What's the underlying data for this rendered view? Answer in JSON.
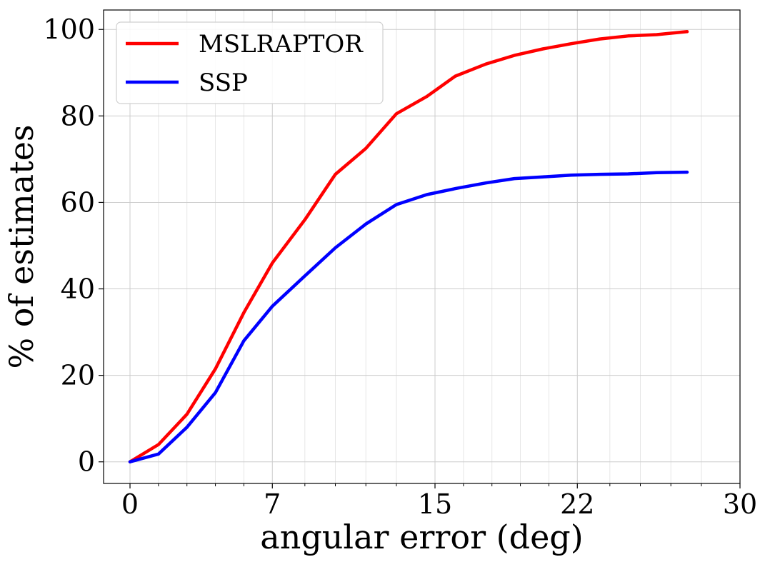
{
  "chart_data": {
    "type": "line",
    "xlabel": "angular error (deg)",
    "ylabel": "% of estimates",
    "xlim": [
      -1.3,
      30
    ],
    "ylim": [
      -5,
      104.5
    ],
    "xticks": [
      0,
      7,
      15,
      22,
      30
    ],
    "xtick_labels": [
      "0",
      "7",
      "15",
      "22",
      "30"
    ],
    "xminor": [
      1.4,
      2.8,
      4.2,
      5.6,
      8.6,
      10.1,
      11.6,
      13.1,
      16.4,
      17.8,
      19.2,
      20.6,
      23.6,
      25.1,
      26.6,
      28.1
    ],
    "yticks": [
      0,
      20,
      40,
      60,
      80,
      100
    ],
    "ytick_labels": [
      "0",
      "20",
      "40",
      "60",
      "80",
      "100"
    ],
    "grid": true,
    "legend_position": "top-left",
    "series": [
      {
        "name": "MSLRAPTOR",
        "color": "#ff0000",
        "x": [
          0,
          1.4,
          2.8,
          4.2,
          5.6,
          7.0,
          8.6,
          10.1,
          11.6,
          13.1,
          14.6,
          16.0,
          17.5,
          18.9,
          20.3,
          21.7,
          23.1,
          24.5,
          25.9,
          27.4
        ],
        "values": [
          0,
          4,
          11,
          21.5,
          34.5,
          46,
          56,
          66.5,
          72.5,
          80.5,
          84.5,
          89.2,
          92,
          94,
          95.5,
          96.7,
          97.8,
          98.5,
          98.8,
          99.5
        ]
      },
      {
        "name": "SSP",
        "color": "#0000ff",
        "x": [
          0,
          1.4,
          2.8,
          4.2,
          5.6,
          7.0,
          8.6,
          10.1,
          11.6,
          13.1,
          14.6,
          16.0,
          17.5,
          18.9,
          20.3,
          21.7,
          23.1,
          24.5,
          25.9,
          27.4
        ],
        "values": [
          0,
          1.8,
          8,
          16,
          28,
          36,
          43,
          49.5,
          55,
          59.5,
          61.8,
          63.2,
          64.5,
          65.5,
          65.9,
          66.3,
          66.5,
          66.6,
          66.9,
          67
        ]
      }
    ]
  }
}
